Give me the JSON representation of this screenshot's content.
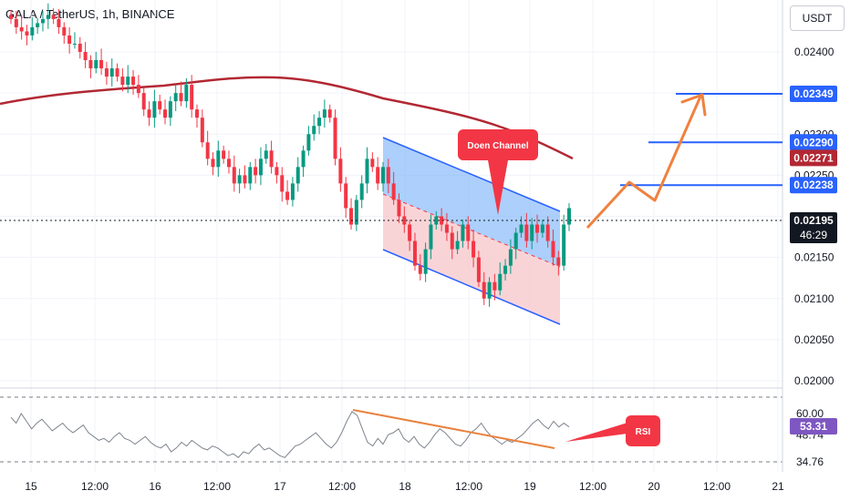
{
  "header": {
    "symbol": "GALA / TetherUS, 1h, BINANCE",
    "currency_button": "USDT"
  },
  "colors": {
    "up_candle": "#089981",
    "down_candle": "#f23645",
    "ma_line": "#b22833",
    "channel_border": "#2962ff",
    "channel_upper_fill": "#90bff9",
    "channel_lower_fill": "#f7c9cd",
    "projection_arrow": "#f0813f",
    "callout_red": "#f23645",
    "rsi_line": "#7e848d",
    "rsi_trend": "#e8823e"
  },
  "chart_data": [
    {
      "type": "candlestick",
      "symbol": "GALA / TetherUS",
      "interval": "1h",
      "exchange": "BINANCE",
      "price_axis": {
        "ticks": [
          "0.02400",
          "0.02350",
          "0.02300",
          "0.02250",
          "0.02150",
          "0.02100",
          "0.02050",
          "0.02000"
        ],
        "range": [
          0.0198,
          0.025
        ]
      },
      "time_axis": {
        "ticks": [
          "15",
          "12:00",
          "16",
          "12:00",
          "17",
          "12:00",
          "18",
          "12:00",
          "19",
          "12:00",
          "20",
          "12:00",
          "21"
        ]
      },
      "current_price": {
        "value": "0.02195",
        "countdown": "46:29"
      },
      "ma_last_value": "0.02271",
      "levels": [
        {
          "value": "0.02349",
          "price": 0.02349
        },
        {
          "value": "0.02290",
          "price": 0.0229
        },
        {
          "value": "0.02238",
          "price": 0.02238
        }
      ],
      "annotation": "Doen Channel",
      "ohlc_close_estimates": [
        0.0244,
        0.0243,
        0.02425,
        0.0242,
        0.0243,
        0.02435,
        0.0244,
        0.02445,
        0.0244,
        0.0243,
        0.0242,
        0.0241,
        0.0241,
        0.024,
        0.0239,
        0.0238,
        0.0239,
        0.0238,
        0.0237,
        0.0238,
        0.0237,
        0.0236,
        0.0237,
        0.0236,
        0.0235,
        0.0233,
        0.0232,
        0.0234,
        0.0233,
        0.0232,
        0.0234,
        0.0235,
        0.0234,
        0.0236,
        0.0233,
        0.0232,
        0.0229,
        0.0227,
        0.0226,
        0.0228,
        0.0227,
        0.0226,
        0.0224,
        0.0225,
        0.0224,
        0.0226,
        0.0225,
        0.0227,
        0.0228,
        0.0226,
        0.0225,
        0.0223,
        0.0222,
        0.0224,
        0.0226,
        0.0228,
        0.023,
        0.0231,
        0.0232,
        0.0233,
        0.0232,
        0.0227,
        0.0224,
        0.0221,
        0.0219,
        0.0222,
        0.0224,
        0.0227,
        0.0226,
        0.0224,
        0.0226,
        0.0224,
        0.0222,
        0.022,
        0.0219,
        0.0217,
        0.0214,
        0.0213,
        0.0216,
        0.0219,
        0.022,
        0.0219,
        0.0218,
        0.0216,
        0.0217,
        0.0219,
        0.0217,
        0.0215,
        0.0212,
        0.021,
        0.0212,
        0.0211,
        0.0213,
        0.0214,
        0.0216,
        0.0218,
        0.0219,
        0.0217,
        0.0219,
        0.0218,
        0.0219,
        0.0217,
        0.0215,
        0.0214,
        0.0219,
        0.0221
      ]
    },
    {
      "type": "line",
      "name": "RSI",
      "values_axis": {
        "ticks": [
          "60.00",
          "48.74",
          "34.76"
        ],
        "range": [
          30,
          70
        ]
      },
      "current_value": "53.31",
      "annotation": "RSI",
      "values": [
        58,
        55,
        60,
        56,
        52,
        55,
        57,
        54,
        51,
        53,
        55,
        52,
        50,
        52,
        54,
        50,
        48,
        46,
        47,
        45,
        48,
        50,
        47,
        46,
        44,
        46,
        48,
        45,
        43,
        42,
        44,
        40,
        42,
        45,
        43,
        46,
        44,
        42,
        41,
        43,
        42,
        40,
        38,
        39,
        37,
        40,
        39,
        42,
        44,
        41,
        42,
        40,
        38,
        37,
        40,
        43,
        44,
        46,
        48,
        50,
        47,
        44,
        42,
        45,
        50,
        56,
        61,
        59,
        52,
        45,
        43,
        47,
        44,
        49,
        50,
        52,
        47,
        45,
        48,
        44,
        42,
        45,
        49,
        52,
        50,
        47,
        44,
        43,
        46,
        50,
        52,
        55,
        51,
        48,
        46,
        44,
        46,
        45,
        47,
        49,
        52,
        55,
        57,
        54,
        52,
        56,
        53,
        55,
        53
      ]
    }
  ]
}
